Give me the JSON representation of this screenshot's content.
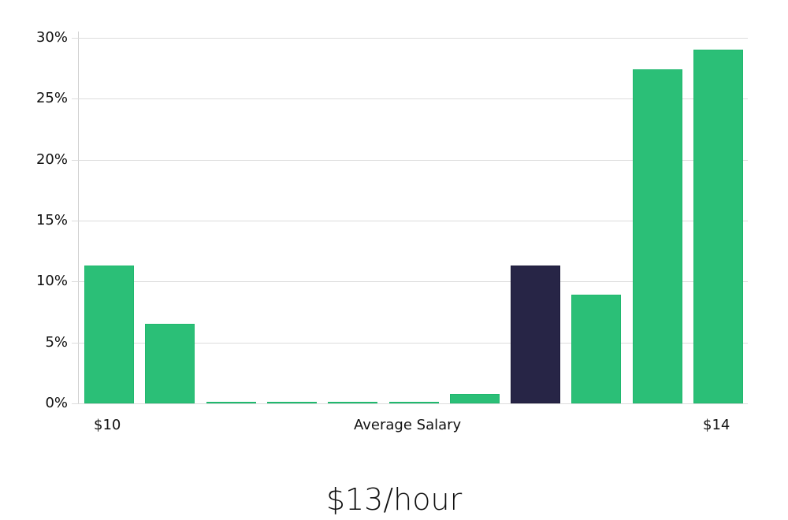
{
  "chart_data": {
    "type": "bar",
    "title": "",
    "xlabel": "Average Salary",
    "ylabel": "",
    "ylim": [
      0,
      30
    ],
    "yticks": [
      "0%",
      "5%",
      "10%",
      "15%",
      "20%",
      "25%",
      "30%"
    ],
    "x_tick_labels": {
      "left": "$10",
      "center": "Average Salary",
      "right": "$14"
    },
    "categories": [
      "bin1",
      "bin2",
      "bin3",
      "bin4",
      "bin5",
      "bin6",
      "bin7",
      "bin8",
      "bin9",
      "bin10",
      "bin11"
    ],
    "values": [
      11.3,
      6.5,
      0.1,
      0.1,
      0.1,
      0.1,
      0.8,
      11.3,
      8.9,
      27.4,
      29.0
    ],
    "highlight_index": 7,
    "colors": {
      "bar": "#2bbf77",
      "highlight": "#272546",
      "grid": "#dcdcdc"
    },
    "grid": true,
    "legend": null
  },
  "labels": {
    "x_left": "$10",
    "x_center": "Average Salary",
    "x_right": "$14",
    "caption": "$13/hour"
  }
}
